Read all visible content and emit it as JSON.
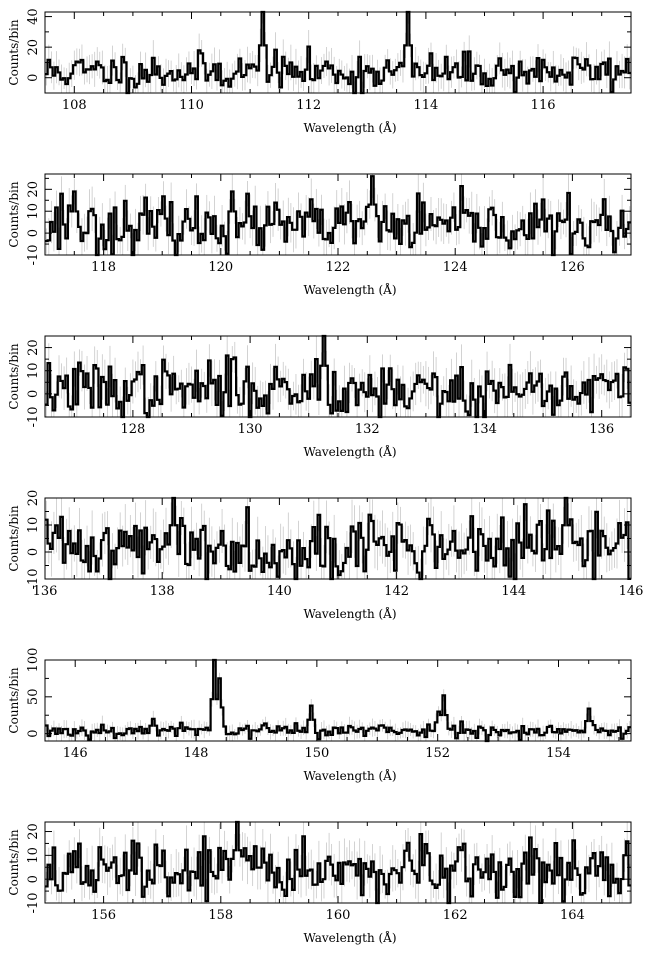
{
  "chart_data": [
    {
      "type": "line",
      "xlabel": "Wavelength (Å)",
      "ylabel": "Counts/bin",
      "xlim": [
        107.5,
        117.5
      ],
      "ylim": [
        -10,
        43
      ],
      "x_ticks": [
        108,
        110,
        112,
        114,
        116
      ],
      "y_ticks": [
        0,
        20,
        40
      ],
      "features": [
        {
          "x": 111.2,
          "y": 43
        },
        {
          "x": 113.7,
          "y": 43
        },
        {
          "x": 112.8,
          "y": -10
        }
      ],
      "baseline": 4,
      "noise": 6,
      "seed": 11,
      "errbar": 9
    },
    {
      "type": "line",
      "xlabel": "Wavelength (Å)",
      "ylabel": "Counts/bin",
      "xlim": [
        117,
        127
      ],
      "ylim": [
        -10,
        27
      ],
      "x_ticks": [
        118,
        120,
        122,
        124,
        126
      ],
      "y_ticks": [
        -10,
        0,
        10,
        20
      ],
      "features": [
        {
          "x": 117.3,
          "y": 18
        },
        {
          "x": 117.5,
          "y": 19
        },
        {
          "x": 120.2,
          "y": 19
        },
        {
          "x": 122.6,
          "y": 26
        },
        {
          "x": 122.5,
          "y": 12
        },
        {
          "x": 117.9,
          "y": -10
        }
      ],
      "baseline": 3,
      "noise": 6,
      "seed": 23,
      "errbar": 8
    },
    {
      "type": "line",
      "xlabel": "Wavelength (Å)",
      "ylabel": "Counts/bin",
      "xlim": [
        126.5,
        136.5
      ],
      "ylim": [
        -10,
        25
      ],
      "x_ticks": [
        128,
        130,
        132,
        134,
        136
      ],
      "y_ticks": [
        -10,
        0,
        10,
        20
      ],
      "features": [
        {
          "x": 131.25,
          "y": 25
        },
        {
          "x": 131.15,
          "y": 15
        },
        {
          "x": 129.7,
          "y": 15
        },
        {
          "x": 134.0,
          "y": -10
        },
        {
          "x": 133.2,
          "y": -10
        }
      ],
      "baseline": 2,
      "noise": 6,
      "seed": 37,
      "errbar": 8
    },
    {
      "type": "line",
      "xlabel": "Wavelength (Å)",
      "ylabel": "Counts/bin",
      "xlim": [
        136,
        146
      ],
      "ylim": [
        -10,
        20
      ],
      "x_ticks": [
        136,
        138,
        140,
        142,
        144,
        146
      ],
      "y_ticks": [
        -10,
        0,
        10,
        20
      ],
      "features": [
        {
          "x": 138.2,
          "y": 20
        },
        {
          "x": 144.9,
          "y": 20
        },
        {
          "x": 140.9,
          "y": -10
        },
        {
          "x": 136.3,
          "y": 13
        }
      ],
      "baseline": 2,
      "noise": 6,
      "seed": 41,
      "errbar": 8
    },
    {
      "type": "line",
      "xlabel": "Wavelength (Å)",
      "ylabel": "Counts/bin",
      "xlim": [
        145.5,
        155.2
      ],
      "ylim": [
        -10,
        100
      ],
      "x_ticks": [
        146,
        148,
        150,
        152,
        154
      ],
      "y_ticks": [
        0,
        50,
        100
      ],
      "features": [
        {
          "x": 148.3,
          "y": 100
        },
        {
          "x": 148.4,
          "y": 75
        },
        {
          "x": 149.9,
          "y": 38
        },
        {
          "x": 152.1,
          "y": 52
        },
        {
          "x": 152.0,
          "y": 30
        },
        {
          "x": 154.5,
          "y": 34
        },
        {
          "x": 147.3,
          "y": 20
        }
      ],
      "baseline": 4,
      "noise": 5,
      "seed": 53,
      "errbar": 10
    },
    {
      "type": "line",
      "xlabel": "Wavelength (Å)",
      "ylabel": "Counts/bin",
      "xlim": [
        155,
        165
      ],
      "ylim": [
        -10,
        24
      ],
      "x_ticks": [
        156,
        158,
        160,
        162,
        164
      ],
      "y_ticks": [
        -10,
        0,
        10,
        20
      ],
      "features": [
        {
          "x": 157.7,
          "y": 18
        },
        {
          "x": 158.3,
          "y": 24
        },
        {
          "x": 156.6,
          "y": 15
        },
        {
          "x": 161.9,
          "y": -10
        },
        {
          "x": 159.4,
          "y": 18
        }
      ],
      "baseline": 3,
      "noise": 6,
      "seed": 67,
      "errbar": 8
    }
  ]
}
